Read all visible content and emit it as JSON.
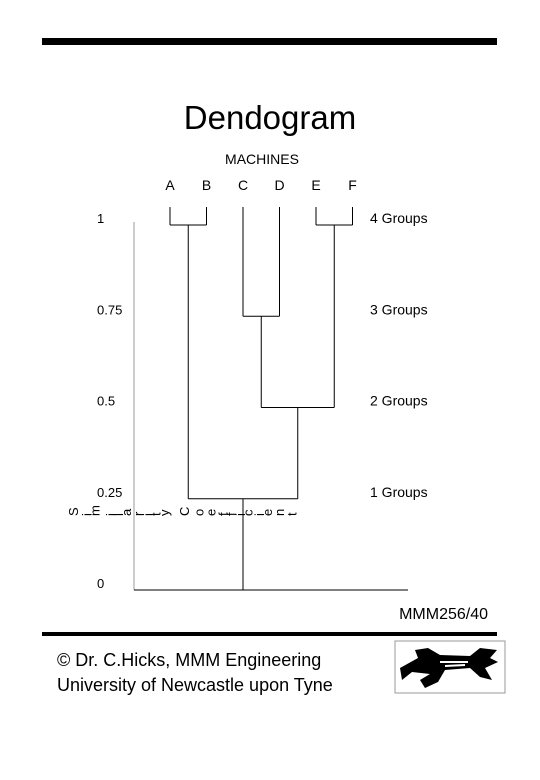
{
  "title": "Dendogram",
  "dendrogram": {
    "leaves_title": "MACHINES",
    "leaves": [
      "A",
      "B",
      "C",
      "D",
      "E",
      "F"
    ],
    "axis_label": "Similarity Coefficient",
    "ylim": [
      0,
      1
    ],
    "yticks": [
      0,
      0.25,
      0.5,
      0.75,
      1
    ],
    "merges": [
      {
        "children": [
          0,
          1
        ],
        "height": 1
      },
      {
        "children": [
          4,
          5
        ],
        "height": 1
      },
      {
        "children": [
          2,
          3
        ],
        "height": 0.75
      },
      {
        "children": [
          8,
          7
        ],
        "height": 0.5
      },
      {
        "children": [
          6,
          9
        ],
        "height": 0.25
      }
    ],
    "group_labels": [
      {
        "height": 1,
        "label": "4 Groups"
      },
      {
        "height": 0.75,
        "label": "3 Groups"
      },
      {
        "height": 0.5,
        "label": "2 Groups"
      },
      {
        "height": 0.25,
        "label": "1 Groups"
      }
    ]
  },
  "slide_id": "MMM256/40",
  "footer": {
    "line1": "© Dr. C.Hicks, MMM Engineering",
    "line2": "University of Newcastle upon Tyne"
  }
}
